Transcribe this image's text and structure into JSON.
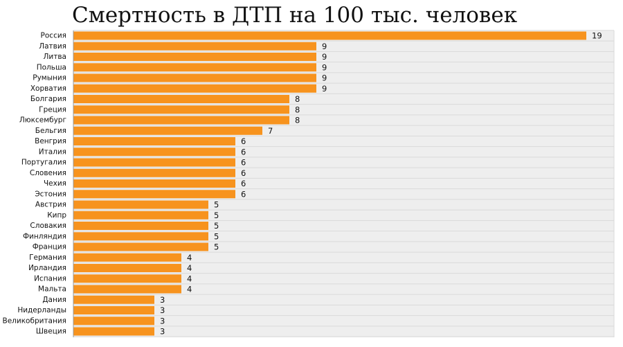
{
  "chart_data": {
    "type": "bar",
    "orientation": "horizontal",
    "title": "Смертность в ДТП на 100 тыс. человек",
    "categories": [
      "Россия",
      "Латвия",
      "Литва",
      "Польша",
      "Румыния",
      "Хорватия",
      "Болгария",
      "Греция",
      "Люксембург",
      "Бельгия",
      "Венгрия",
      "Италия",
      "Португалия",
      "Словения",
      "Чехия",
      "Эстония",
      "Австрия",
      "Кипр",
      "Словакия",
      "Финляндия",
      "Франция",
      "Германия",
      "Ирландия",
      "Испания",
      "Мальта",
      "Дания",
      "Нидерланды",
      "Великобритания",
      "Швеция"
    ],
    "values": [
      19,
      9,
      9,
      9,
      9,
      9,
      8,
      8,
      8,
      7,
      6,
      6,
      6,
      6,
      6,
      6,
      5,
      5,
      5,
      5,
      5,
      4,
      4,
      4,
      4,
      3,
      3,
      3,
      3
    ],
    "value_labels": [
      "19",
      "9",
      "9",
      "9",
      "9",
      "9",
      "8",
      "8",
      "8",
      "7",
      "6",
      "6",
      "6",
      "6",
      "6",
      "6",
      "5",
      "5",
      "5",
      "5",
      "5",
      "4",
      "4",
      "4",
      "4",
      "3",
      "3",
      "3",
      "3"
    ],
    "xlabel": "",
    "ylabel": "",
    "xlim": [
      0,
      20
    ],
    "grid": "horizontal",
    "legend": "none",
    "colors": {
      "bar": "#f7931e",
      "plot_background": "#eeeeee",
      "gridline": "#d9d9d9",
      "axis": "#9a9a9a"
    }
  }
}
